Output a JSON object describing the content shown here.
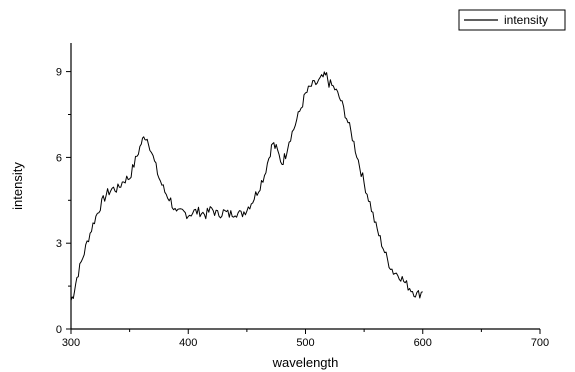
{
  "chart_data": {
    "type": "line",
    "xlabel": "wavelength",
    "ylabel": "intensity",
    "xlim": [
      300,
      700
    ],
    "ylim": [
      0,
      10
    ],
    "xticks": [
      300,
      400,
      500,
      600,
      700
    ],
    "yticks": [
      0,
      3,
      6,
      9
    ],
    "grid": false,
    "legend_position": "top-right",
    "line_color": "#000000",
    "series": [
      {
        "name": "intensity",
        "x": [
          300,
          302,
          305,
          310,
          315,
          320,
          325,
          330,
          335,
          340,
          345,
          350,
          355,
          360,
          363,
          366,
          370,
          375,
          380,
          385,
          390,
          395,
          400,
          405,
          410,
          415,
          420,
          425,
          430,
          435,
          440,
          445,
          450,
          455,
          460,
          465,
          470,
          472,
          475,
          480,
          483,
          486,
          490,
          495,
          500,
          505,
          510,
          515,
          518,
          520,
          525,
          530,
          535,
          540,
          545,
          550,
          555,
          560,
          565,
          570,
          575,
          580,
          585,
          590,
          595,
          600
        ],
        "y": [
          1.0,
          1.2,
          1.8,
          2.5,
          3.2,
          3.8,
          4.3,
          4.7,
          4.9,
          4.9,
          5.2,
          5.3,
          5.9,
          6.5,
          6.75,
          6.6,
          6.0,
          5.3,
          4.8,
          4.5,
          4.0,
          4.1,
          4.0,
          4.1,
          4.1,
          4.0,
          4.2,
          4.0,
          4.1,
          4.0,
          4.1,
          4.0,
          4.2,
          4.5,
          4.9,
          5.4,
          6.2,
          6.5,
          6.3,
          5.8,
          6.1,
          6.6,
          7.0,
          7.6,
          8.2,
          8.5,
          8.6,
          8.8,
          8.85,
          8.6,
          8.4,
          8.0,
          7.4,
          6.7,
          5.9,
          5.1,
          4.4,
          3.6,
          3.0,
          2.4,
          2.0,
          1.9,
          1.6,
          1.4,
          1.2,
          1.3
        ]
      }
    ]
  }
}
